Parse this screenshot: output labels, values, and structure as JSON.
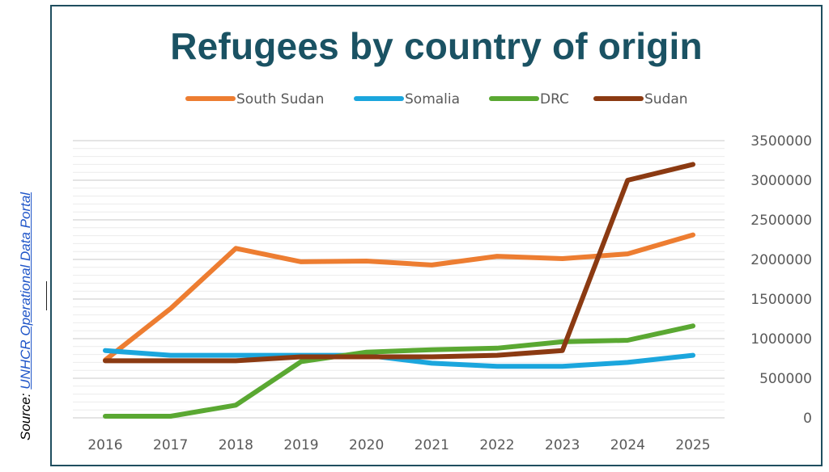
{
  "source": {
    "prefix": "Source: ",
    "link_text": "UNHCR Operational Data Portal"
  },
  "chart_data": {
    "type": "line",
    "title": "Refugees by country of origin",
    "xlabel": "",
    "ylabel": "",
    "categories": [
      "2016",
      "2017",
      "2018",
      "2019",
      "2020",
      "2021",
      "2022",
      "2023",
      "2024",
      "2025"
    ],
    "ylim": [
      0,
      3500000
    ],
    "yticks": [
      0,
      500000,
      1000000,
      1500000,
      2000000,
      2500000,
      3000000,
      3500000
    ],
    "y_axis_position": "right",
    "grid": true,
    "legend_position": "top",
    "series": [
      {
        "name": "South Sudan",
        "color": "#ed7d31",
        "values": [
          730000,
          1380000,
          2140000,
          1970000,
          1980000,
          1930000,
          2040000,
          2010000,
          2070000,
          2310000
        ]
      },
      {
        "name": "Somalia",
        "color": "#1ba6dd",
        "values": [
          850000,
          790000,
          790000,
          790000,
          790000,
          690000,
          650000,
          650000,
          700000,
          790000
        ]
      },
      {
        "name": "DRC",
        "color": "#5aa832",
        "values": [
          20000,
          20000,
          160000,
          710000,
          830000,
          860000,
          880000,
          960000,
          980000,
          1160000
        ]
      },
      {
        "name": "Sudan",
        "color": "#8b3a12",
        "values": [
          720000,
          720000,
          720000,
          770000,
          770000,
          770000,
          790000,
          850000,
          3000000,
          3200000
        ]
      }
    ]
  }
}
